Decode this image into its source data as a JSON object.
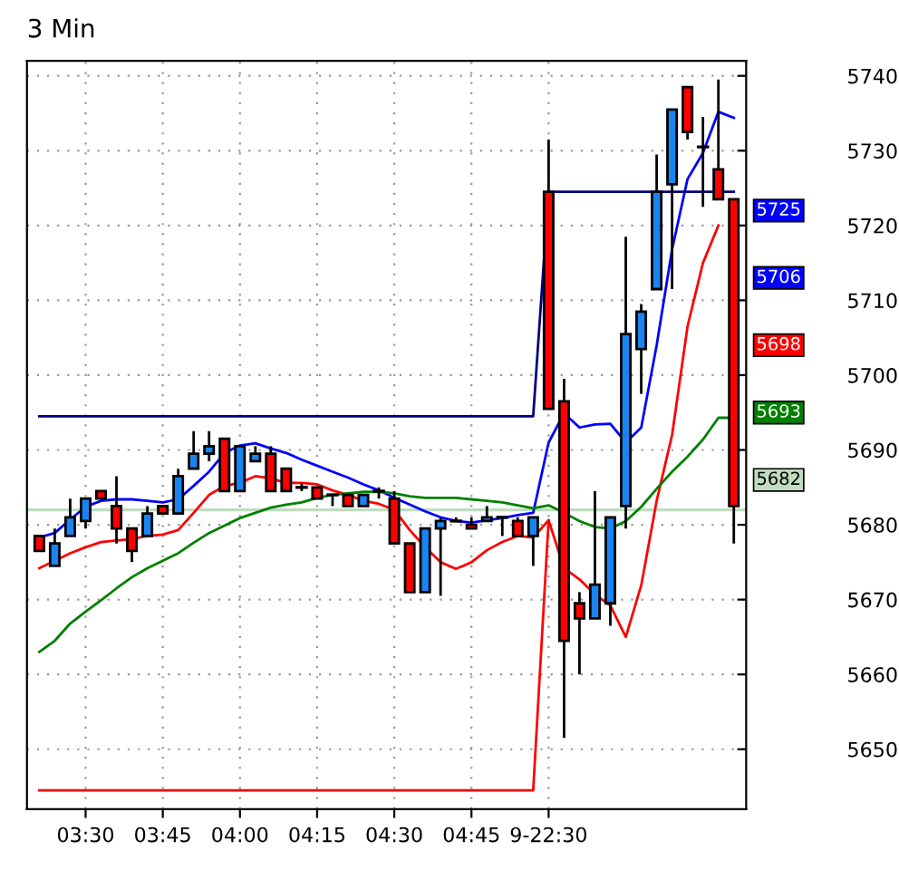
{
  "chart_data": {
    "type": "candlestick",
    "title": "3 Min",
    "categories": [
      null,
      null,
      null,
      "03:30",
      null,
      null,
      null,
      null,
      "03:45",
      null,
      null,
      null,
      null,
      "04:00",
      null,
      null,
      null,
      null,
      "04:15",
      null,
      null,
      null,
      null,
      "04:30",
      null,
      null,
      null,
      null,
      "04:45",
      null,
      null,
      null,
      null,
      "9-22:30",
      null,
      null,
      null,
      null,
      null,
      null,
      null,
      null,
      null,
      null,
      null,
      null
    ],
    "ohlc": [
      [
        5678.5,
        5678.5,
        5676.5,
        5676.5
      ],
      [
        5674.5,
        5679.5,
        5674.5,
        5677.5
      ],
      [
        5678.5,
        5683.5,
        5678.5,
        5681
      ],
      [
        5680.5,
        5683.5,
        5679.5,
        5683.5
      ],
      [
        5684.5,
        5684.5,
        5683.5,
        5683.5
      ],
      [
        5682.5,
        5686.5,
        5677.5,
        5679.5
      ],
      [
        5679.5,
        5679.5,
        5675,
        5676.5
      ],
      [
        5678.5,
        5682.5,
        5678.5,
        5681.5
      ],
      [
        5682.5,
        5682.5,
        5681.5,
        5681.5
      ],
      [
        5681.5,
        5687.5,
        5681.5,
        5686.5
      ],
      [
        5687.5,
        5692.5,
        5687.5,
        5689.5
      ],
      [
        5689.5,
        5692.5,
        5688.5,
        5690.5
      ],
      [
        5691.5,
        5691.5,
        5684.5,
        5684.5
      ],
      [
        5684.5,
        5690.5,
        5684.5,
        5690.5
      ],
      [
        5688.5,
        5690.5,
        5688.5,
        5689.5
      ],
      [
        5689.5,
        5690.5,
        5684.5,
        5684.5
      ],
      [
        5687.5,
        5687.5,
        5684.5,
        5684.5
      ],
      [
        5685,
        5685.5,
        5684.5,
        5685
      ],
      [
        5685,
        5685,
        5683.5,
        5683.5
      ],
      [
        5684,
        5684,
        5682.5,
        5684
      ],
      [
        5684,
        5684,
        5682.5,
        5682.5
      ],
      [
        5682.5,
        5684,
        5682.5,
        5684
      ],
      [
        5684.5,
        5685,
        5683.5,
        5684.5
      ],
      [
        5683.5,
        5684.5,
        5677.5,
        5677.5
      ],
      [
        5677.5,
        5677.5,
        5671,
        5671
      ],
      [
        5671,
        5679.5,
        5671,
        5679.5
      ],
      [
        5679.5,
        5681,
        5670.5,
        5680.5
      ],
      [
        5680.5,
        5681,
        5680.5,
        5680.5
      ],
      [
        5680,
        5681,
        5679.5,
        5679.5
      ],
      [
        5680.5,
        5682.5,
        5680.5,
        5681
      ],
      [
        5681,
        5681,
        5678.5,
        5681
      ],
      [
        5680.5,
        5681,
        5678.5,
        5678.5
      ],
      [
        5678.5,
        5681,
        5674.5,
        5681
      ],
      [
        5724.5,
        5731.5,
        5695.5,
        5695.5
      ],
      [
        5696.5,
        5699.5,
        5651.5,
        5664.5
      ],
      [
        5669.5,
        5671,
        5660,
        5667.5
      ],
      [
        5667.5,
        5684.5,
        5667.5,
        5672
      ],
      [
        5669.5,
        5681,
        5666.5,
        5681
      ],
      [
        5682.5,
        5718.5,
        5679.5,
        5705.5
      ],
      [
        5703.5,
        5709.5,
        5697.5,
        5708.5
      ],
      [
        5711.5,
        5729.5,
        5711.5,
        5724.5
      ],
      [
        5725.5,
        5735.5,
        5711.5,
        5735.5
      ],
      [
        5738.5,
        5738.5,
        5731.5,
        5732.5
      ],
      [
        5730.5,
        5734.5,
        5722.5,
        5730.5
      ],
      [
        5727.5,
        5739.5,
        5723.5,
        5723.5
      ],
      [
        5723.5,
        5723.5,
        5677.5,
        5682.5
      ]
    ],
    "colors": [
      "#ff0000",
      "#1a84f0",
      "#1a84f0",
      "#1a84f0",
      "#ff0000",
      "#ff0000",
      "#ff0000",
      "#1a84f0",
      "#ff0000",
      "#1a84f0",
      "#1a84f0",
      "#1a84f0",
      "#ff0000",
      "#1a84f0",
      "#1a84f0",
      "#ff0000",
      "#ff0000",
      "#000000",
      "#ff0000",
      "#000000",
      "#ff0000",
      "#1a84f0",
      "#000000",
      "#ff0000",
      "#ff0000",
      "#1a84f0",
      "#1a84f0",
      "#000000",
      "#ff0000",
      "#1a84f0",
      "#000000",
      "#ff0000",
      "#1a84f0",
      "#ff0000",
      "#ff0000",
      "#ff0000",
      "#1a84f0",
      "#1a84f0",
      "#1a84f0",
      "#1a84f0",
      "#1a84f0",
      "#1a84f0",
      "#ff0000",
      "#000000",
      "#ff0000",
      "#ff0000"
    ],
    "series": [
      {
        "type": "line",
        "color": "#0000ff",
        "values": [
          5678.3,
          5678.9,
          5680.7,
          5682.4,
          5683.2,
          5683.4,
          5683.4,
          5683.2,
          5683,
          5683.4,
          5685.2,
          5687.1,
          5689.6,
          5690.6,
          5690.9,
          5690.2,
          5689.6,
          5688.7,
          5687.9,
          5687.1,
          5686.3,
          5685.4,
          5684.6,
          5683.6,
          5682.7,
          5681.8,
          5681,
          5680.5,
          5680.3,
          5680.6,
          5680.9,
          5681.3,
          5681.6,
          5691,
          5694.9,
          5693,
          5693.4,
          5693.5,
          5691,
          5693,
          5704,
          5716.8,
          5726.2,
          5729.7,
          5735.2,
          5734.4
        ]
      },
      {
        "type": "line",
        "color": "#ff0000",
        "values": [
          5674.2,
          5675.2,
          5676.2,
          5677,
          5677.7,
          5677.9,
          5678.1,
          5678.5,
          5678.7,
          5679.3,
          5681.6,
          5684,
          5685.2,
          5685.6,
          5686.5,
          5686.2,
          5685.6,
          5685.6,
          5685.4,
          5684.6,
          5684,
          5683.2,
          5682.8,
          5682,
          5679.3,
          5677,
          5675,
          5674.1,
          5675,
          5676.6,
          5677.7,
          5678.5,
          5678.3,
          5680.6,
          5674.2,
          5672.7,
          5670.7,
          5669.2,
          5665,
          5671.9,
          5683.2,
          5692,
          5706.5,
          5715,
          5720,
          null
        ]
      },
      {
        "type": "line",
        "color": "#008000",
        "values": [
          5663,
          5664.5,
          5666.8,
          5668.4,
          5669.9,
          5671.5,
          5673,
          5674.2,
          5675.2,
          5676.2,
          5677.6,
          5678.9,
          5679.9,
          5680.9,
          5681.6,
          5682.3,
          5682.7,
          5683,
          5683.6,
          5684,
          5684.2,
          5684.4,
          5684.4,
          5684.2,
          5683.8,
          5683.6,
          5683.6,
          5683.6,
          5683.4,
          5683.2,
          5683,
          5682.6,
          5682.2,
          5682.6,
          5681.6,
          5680.5,
          5679.7,
          5679.5,
          5680.5,
          5682.4,
          5684.8,
          5687.1,
          5689.1,
          5691.4,
          5694.3,
          5694.3
        ]
      },
      {
        "type": "line",
        "color": "#000080",
        "values": [
          5694.5,
          5694.5,
          5694.5,
          5694.5,
          5694.5,
          5694.5,
          5694.5,
          5694.5,
          5694.5,
          5694.5,
          5694.5,
          5694.5,
          5694.5,
          5694.5,
          5694.5,
          5694.5,
          5694.5,
          5694.5,
          5694.5,
          5694.5,
          5694.5,
          5694.5,
          5694.5,
          5694.5,
          5694.5,
          5694.5,
          5694.5,
          5694.5,
          5694.5,
          5694.5,
          5694.5,
          5694.5,
          5694.5,
          5724.5,
          5724.5,
          5724.5,
          5724.5,
          5724.5,
          5724.5,
          5724.5,
          5724.5,
          5724.5,
          5724.5,
          5724.5,
          5724.5,
          5724.5
        ]
      },
      {
        "type": "line",
        "color": "#ff0000",
        "values": [
          5644.5,
          5644.5,
          5644.5,
          5644.5,
          5644.5,
          5644.5,
          5644.5,
          5644.5,
          5644.5,
          5644.5,
          5644.5,
          5644.5,
          5644.5,
          5644.5,
          5644.5,
          5644.5,
          5644.5,
          5644.5,
          5644.5,
          5644.5,
          5644.5,
          5644.5,
          5644.5,
          5644.5,
          5644.5,
          5644.5,
          5644.5,
          5644.5,
          5644.5,
          5644.5,
          5644.5,
          5644.5,
          5644.5,
          5680.6,
          null,
          null,
          null,
          null,
          null,
          null,
          null,
          null,
          null,
          null,
          null,
          null
        ]
      }
    ],
    "ref_lines": [
      {
        "axis": "y",
        "value": 5682,
        "color": "#c0dcc0"
      }
    ],
    "annotations": [
      "5725",
      "5706",
      "5698",
      "5693",
      "5682"
    ],
    "ylim": [
      5642,
      5742
    ],
    "yticks": [
      5650,
      5660,
      5670,
      5680,
      5690,
      5700,
      5710,
      5720,
      5730,
      5740
    ],
    "grid": true
  }
}
